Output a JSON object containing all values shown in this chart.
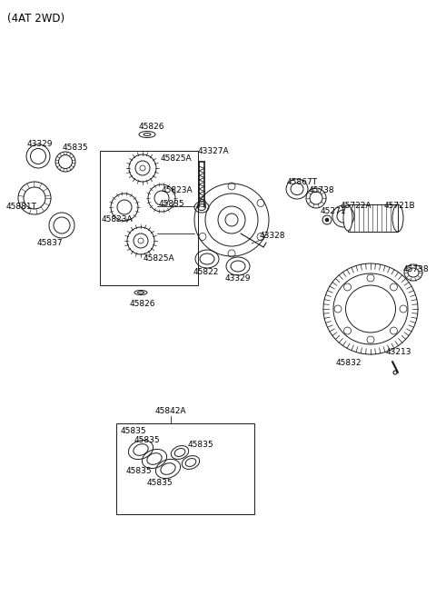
{
  "title": "(4AT 2WD)",
  "bg_color": "#ffffff",
  "line_color": "#1a1a1a",
  "text_color": "#000000",
  "font_size": 6.5,
  "title_font_size": 8.5,
  "labels": {
    "43329_tl": "43329",
    "45835_tl": "45835",
    "45881T": "45881T",
    "45837": "45837",
    "45826_top": "45826",
    "45825A_top": "45825A",
    "45823A_right": "45823A",
    "45823A_left": "45823A",
    "45825A_bot": "45825A",
    "45826_bot": "45826",
    "43327A": "43327A",
    "45835_mid": "45835",
    "45867T": "45867T",
    "45738_top": "45738",
    "45271": "45271",
    "45722A": "45722A",
    "45721B": "45721B",
    "43328": "43328",
    "45822": "45822",
    "43329_mid": "43329",
    "45832": "45832",
    "43213": "43213",
    "45738_bot": "45738",
    "45842A": "45842A",
    "45835_b1": "45835",
    "45835_b2": "45835",
    "45835_b3": "45835",
    "45835_b4": "45835",
    "45835_b5": "45835"
  }
}
